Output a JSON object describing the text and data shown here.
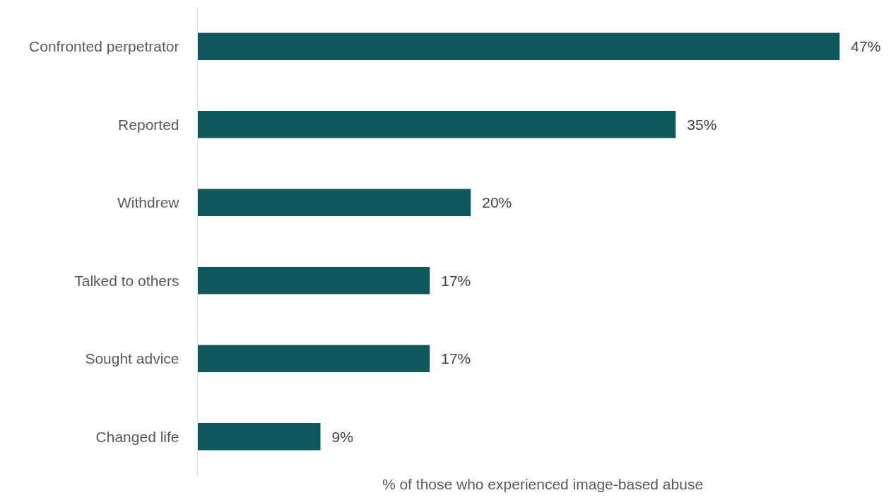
{
  "chart_data": {
    "type": "bar",
    "orientation": "horizontal",
    "xlabel": "% of those who experienced image-based abuse",
    "categories": [
      "Confronted perpetrator",
      "Reported",
      "Withdrew",
      "Talked to others",
      "Sought advice",
      "Changed life"
    ],
    "values": [
      47,
      35,
      20,
      17,
      17,
      9
    ],
    "value_labels": [
      "47%",
      "35%",
      "20%",
      "17%",
      "17%",
      "9%"
    ],
    "color": "#0e575b",
    "grid": false
  }
}
